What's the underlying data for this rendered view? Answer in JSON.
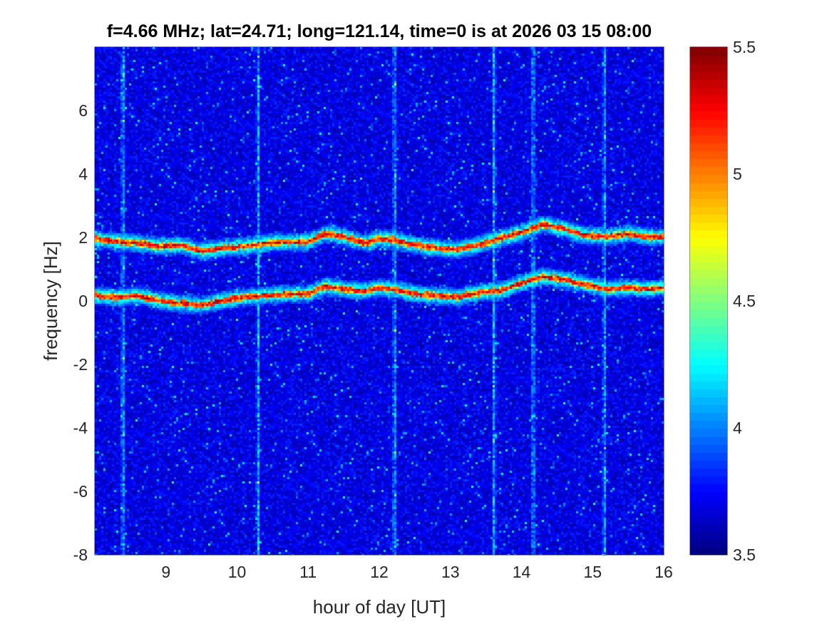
{
  "chart_data": {
    "type": "heatmap",
    "title": "f=4.66 MHz;  lat=24.71; long=121.14, time=0 is at 2026 03 15 08:00",
    "xlabel": "hour of day [UT]",
    "ylabel": "frequency [Hz]",
    "xlim": [
      8,
      16
    ],
    "ylim": [
      -8,
      8
    ],
    "x_ticks": [
      "9",
      "10",
      "11",
      "12",
      "13",
      "14",
      "15",
      "16"
    ],
    "y_ticks": [
      "-8",
      "-6",
      "-4",
      "-2",
      "0",
      "2",
      "4",
      "6"
    ],
    "colormap": "jet",
    "clim": [
      3.5,
      5.5
    ],
    "colorbar_ticks": [
      "3.5",
      "4",
      "4.5",
      "5",
      "5.5"
    ],
    "grid": false,
    "background_level": 3.7,
    "vertical_streak_hours": [
      8.38,
      10.28,
      12.2,
      13.6,
      14.15,
      15.15
    ],
    "traces": [
      {
        "hours": [
          8.0,
          8.3,
          8.6,
          8.9,
          9.2,
          9.5,
          9.8,
          10.1,
          10.4,
          10.7,
          11.0,
          11.25,
          11.5,
          11.8,
          12.0,
          12.2,
          12.5,
          12.8,
          13.1,
          13.4,
          13.7,
          14.0,
          14.3,
          14.6,
          14.9,
          15.2,
          15.5,
          15.8,
          16.0
        ],
        "frequency_hz": [
          2.0,
          1.9,
          1.85,
          1.75,
          1.8,
          1.6,
          1.7,
          1.75,
          1.85,
          1.9,
          1.9,
          2.15,
          2.05,
          1.85,
          2.0,
          1.95,
          1.8,
          1.7,
          1.65,
          1.8,
          2.0,
          2.2,
          2.45,
          2.3,
          2.1,
          2.05,
          2.15,
          2.05,
          2.05
        ],
        "level": 5.5
      },
      {
        "hours": [
          8.0,
          8.3,
          8.6,
          8.9,
          9.2,
          9.5,
          9.8,
          10.1,
          10.4,
          10.7,
          11.0,
          11.25,
          11.5,
          11.8,
          12.0,
          12.2,
          12.5,
          12.8,
          13.1,
          13.4,
          13.7,
          14.0,
          14.3,
          14.6,
          14.9,
          15.2,
          15.5,
          15.8,
          16.0
        ],
        "frequency_hz": [
          0.2,
          0.15,
          0.2,
          0.05,
          -0.05,
          -0.1,
          0.05,
          0.15,
          0.2,
          0.25,
          0.25,
          0.5,
          0.4,
          0.35,
          0.45,
          0.4,
          0.25,
          0.2,
          0.15,
          0.3,
          0.35,
          0.6,
          0.8,
          0.7,
          0.55,
          0.4,
          0.45,
          0.4,
          0.45
        ],
        "level": 5.5
      }
    ]
  }
}
